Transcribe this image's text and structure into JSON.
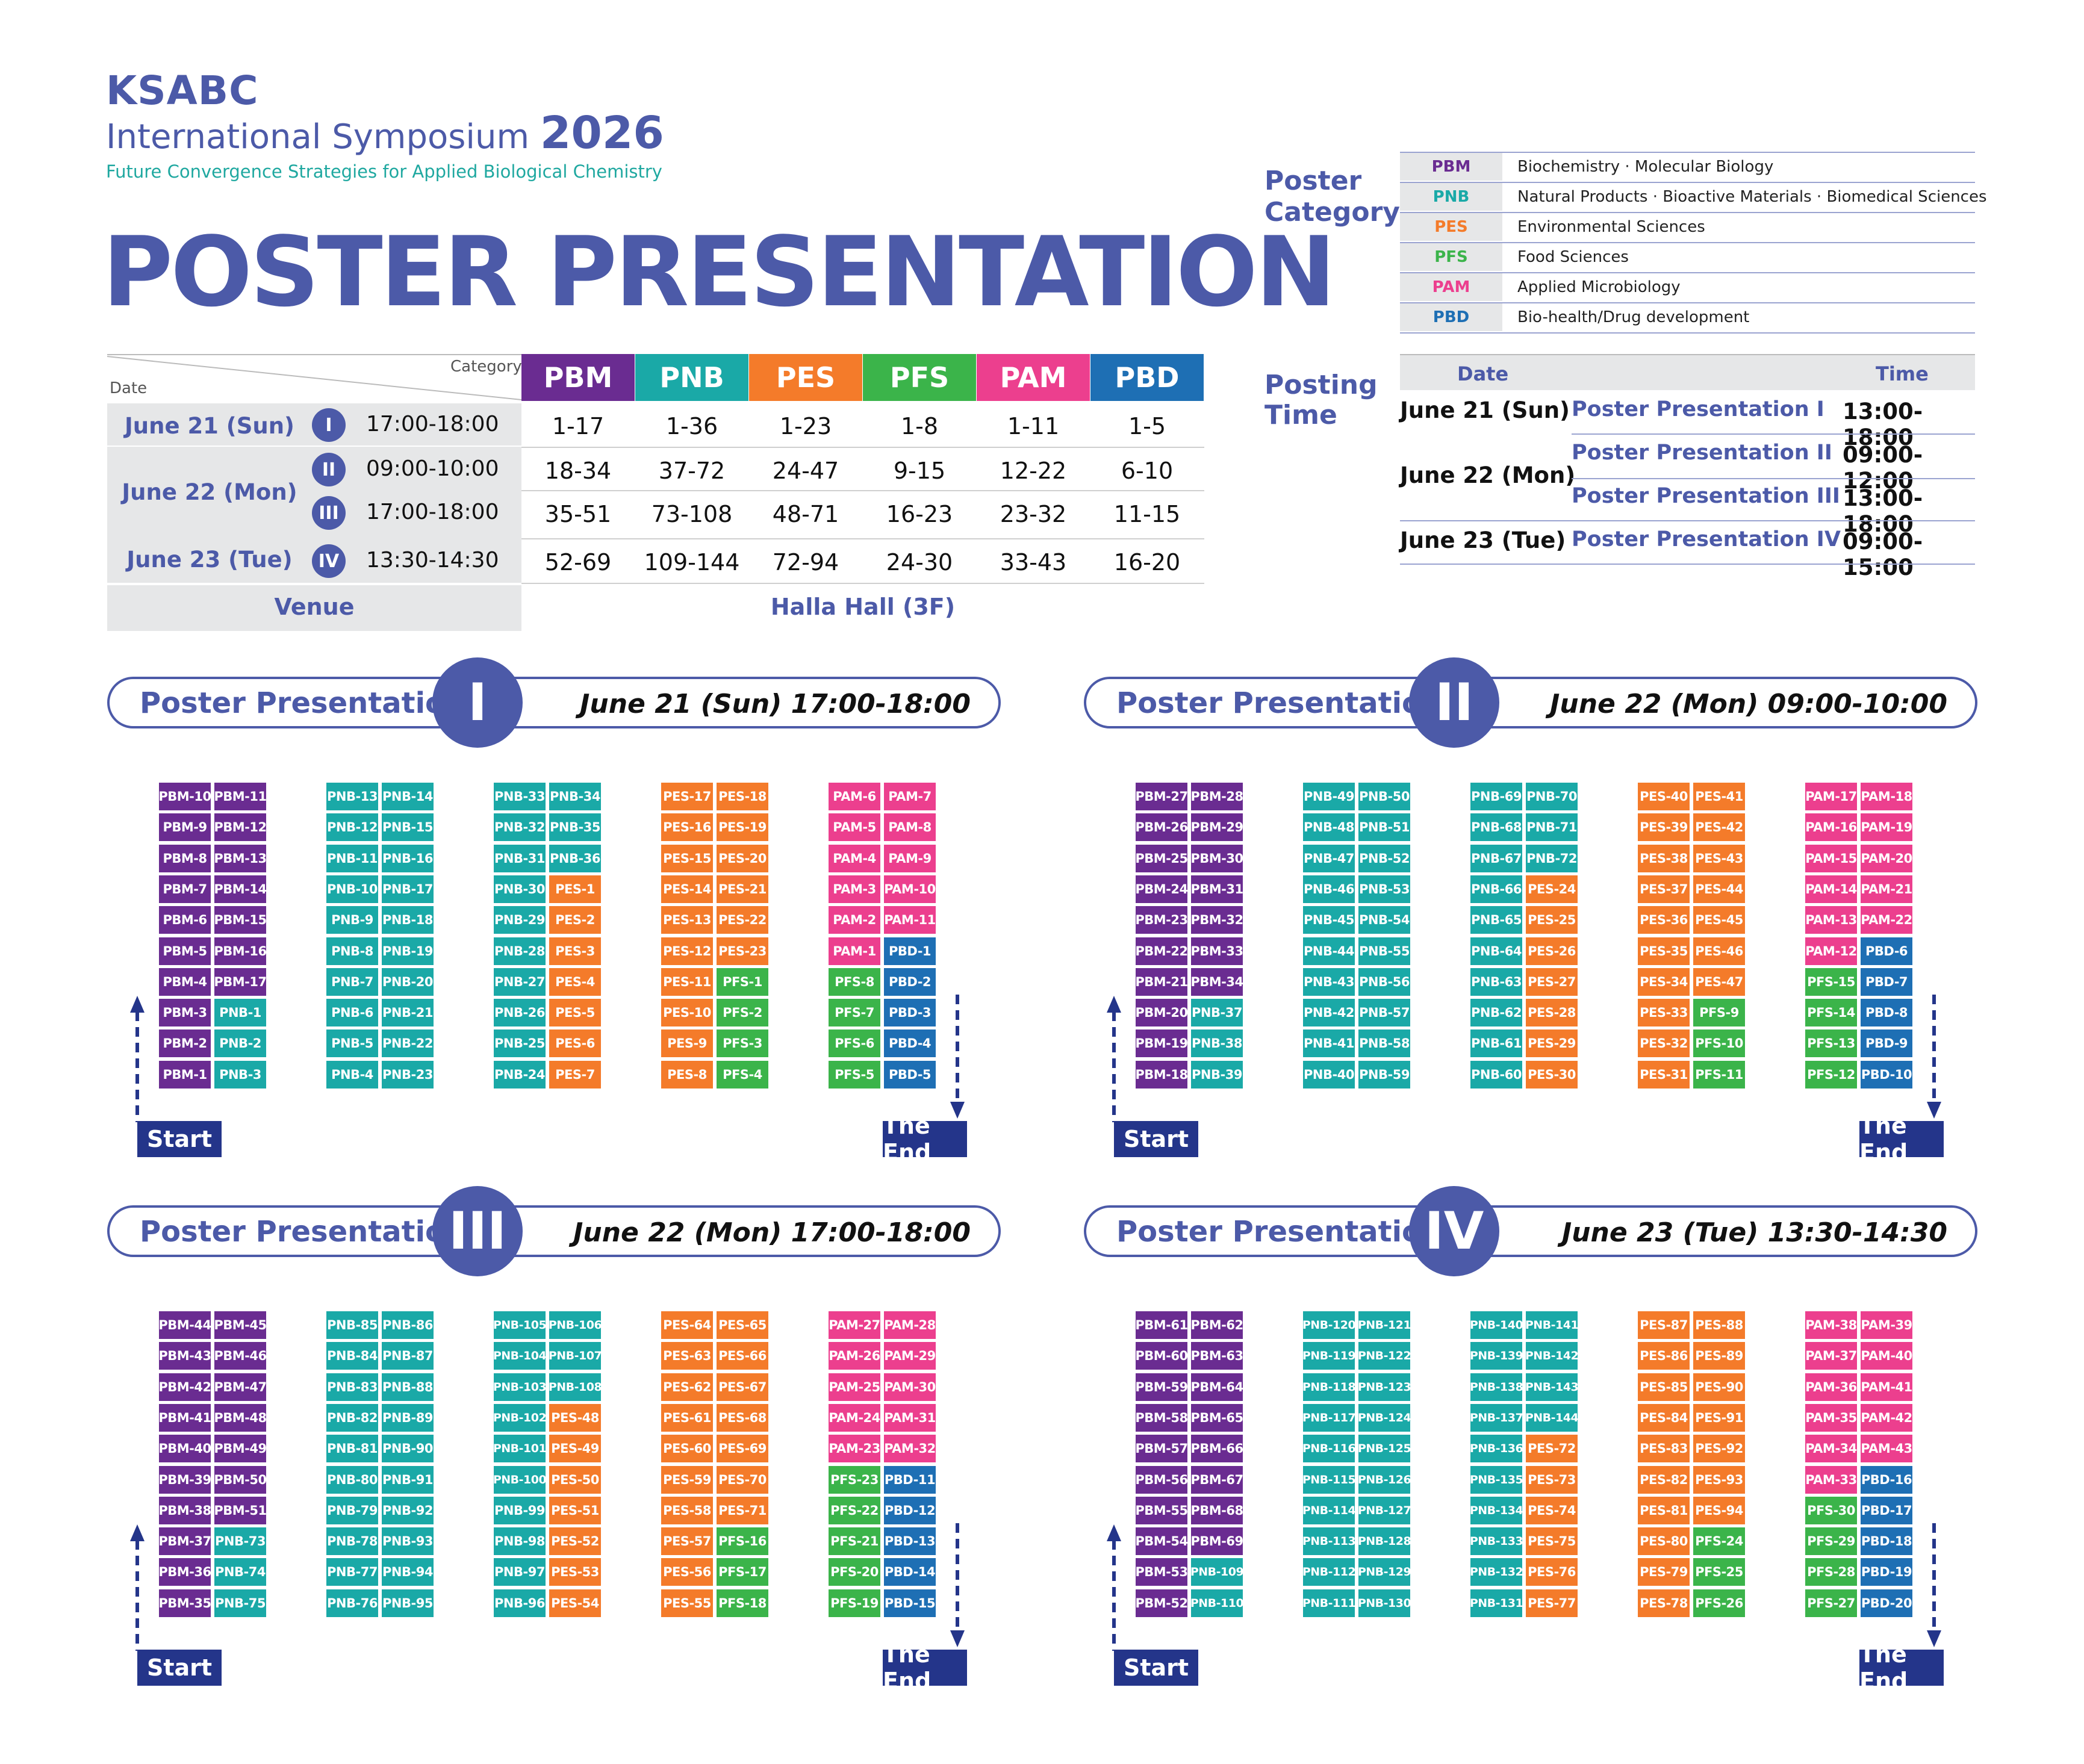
{
  "header": {
    "brand": "KSABC",
    "symposium": "International Symposium",
    "year": "2026",
    "tagline": "Future Convergence Strategies for Applied Biological Chemistry",
    "title": "POSTER PRESENTATION"
  },
  "colors": {
    "PBM": "#6a2c91",
    "PNB": "#1aa9a7",
    "PES": "#f47b2a",
    "PFS": "#3bb44a",
    "PAM": "#ec3f8e",
    "PBD": "#1e6fb4",
    "primary": "#4c5aa8",
    "button": "#24358a"
  },
  "schedule": {
    "category_label": "Category",
    "date_label": "Date",
    "categories": [
      "PBM",
      "PNB",
      "PES",
      "PFS",
      "PAM",
      "PBD"
    ],
    "rows": [
      {
        "date": "June 21 (Sun)",
        "session": "I",
        "time": "17:00-18:00",
        "values": [
          "1-17",
          "1-36",
          "1-23",
          "1-8",
          "1-11",
          "1-5"
        ]
      },
      {
        "date": "June 22 (Mon)",
        "session": "II",
        "time": "09:00-10:00",
        "values": [
          "18-34",
          "37-72",
          "24-47",
          "9-15",
          "12-22",
          "6-10"
        ]
      },
      {
        "date": "",
        "session": "III",
        "time": "17:00-18:00",
        "values": [
          "35-51",
          "73-108",
          "48-71",
          "16-23",
          "23-32",
          "11-15"
        ]
      },
      {
        "date": "June 23 (Tue)",
        "session": "IV",
        "time": "13:30-14:30",
        "values": [
          "52-69",
          "109-144",
          "72-94",
          "24-30",
          "33-43",
          "16-20"
        ]
      }
    ],
    "venue_label": "Venue",
    "venue": "Halla Hall (3F)"
  },
  "poster_category": {
    "title_line1": "Poster",
    "title_line2": "Category",
    "items": [
      {
        "code": "PBM",
        "name": "Biochemistry · Molecular Biology"
      },
      {
        "code": "PNB",
        "name": "Natural Products · Bioactive Materials · Biomedical Sciences"
      },
      {
        "code": "PES",
        "name": "Environmental Sciences"
      },
      {
        "code": "PFS",
        "name": "Food Sciences"
      },
      {
        "code": "PAM",
        "name": "Applied Microbiology"
      },
      {
        "code": "PBD",
        "name": "Bio-health/Drug development"
      }
    ]
  },
  "posting_time": {
    "title_line1": "Posting",
    "title_line2": "Time",
    "date_header": "Date",
    "time_header": "Time",
    "rows": [
      {
        "date": "June 21 (Sun)",
        "name": "Poster Presentation I",
        "time": "13:00-18:00"
      },
      {
        "date": "June 22 (Mon)",
        "name": "Poster Presentation II",
        "time": "09:00-12:00"
      },
      {
        "date": "",
        "name": "Poster Presentation III",
        "time": "13:00-18:00"
      },
      {
        "date": "June 23 (Tue)",
        "name": "Poster Presentation IV",
        "time": "09:00-15:00"
      }
    ]
  },
  "sessions": [
    {
      "label": "Poster Presentation",
      "number": "I",
      "datetime": "June 21 (Sun) 17:00-18:00",
      "start": "Start",
      "end": "The End",
      "columns": [
        [
          "PBM-10",
          "PBM-9",
          "PBM-8",
          "PBM-7",
          "PBM-6",
          "PBM-5",
          "PBM-4",
          "PBM-3",
          "PBM-2",
          "PBM-1"
        ],
        [
          "PBM-11",
          "PBM-12",
          "PBM-13",
          "PBM-14",
          "PBM-15",
          "PBM-16",
          "PBM-17",
          "PNB-1",
          "PNB-2",
          "PNB-3"
        ],
        [
          "PNB-13",
          "PNB-12",
          "PNB-11",
          "PNB-10",
          "PNB-9",
          "PNB-8",
          "PNB-7",
          "PNB-6",
          "PNB-5",
          "PNB-4"
        ],
        [
          "PNB-14",
          "PNB-15",
          "PNB-16",
          "PNB-17",
          "PNB-18",
          "PNB-19",
          "PNB-20",
          "PNB-21",
          "PNB-22",
          "PNB-23"
        ],
        [
          "PNB-33",
          "PNB-32",
          "PNB-31",
          "PNB-30",
          "PNB-29",
          "PNB-28",
          "PNB-27",
          "PNB-26",
          "PNB-25",
          "PNB-24"
        ],
        [
          "PNB-34",
          "PNB-35",
          "PNB-36",
          "PES-1",
          "PES-2",
          "PES-3",
          "PES-4",
          "PES-5",
          "PES-6",
          "PES-7"
        ],
        [
          "PES-17",
          "PES-16",
          "PES-15",
          "PES-14",
          "PES-13",
          "PES-12",
          "PES-11",
          "PES-10",
          "PES-9",
          "PES-8"
        ],
        [
          "PES-18",
          "PES-19",
          "PES-20",
          "PES-21",
          "PES-22",
          "PES-23",
          "PFS-1",
          "PFS-2",
          "PFS-3",
          "PFS-4"
        ],
        [
          "PAM-6",
          "PAM-5",
          "PAM-4",
          "PAM-3",
          "PAM-2",
          "PAM-1",
          "PFS-8",
          "PFS-7",
          "PFS-6",
          "PFS-5"
        ],
        [
          "PAM-7",
          "PAM-8",
          "PAM-9",
          "PAM-10",
          "PAM-11",
          "PBD-1",
          "PBD-2",
          "PBD-3",
          "PBD-4",
          "PBD-5"
        ]
      ]
    },
    {
      "label": "Poster Presentation",
      "number": "II",
      "datetime": "June 22 (Mon) 09:00-10:00",
      "start": "Start",
      "end": "The End",
      "columns": [
        [
          "PBM-27",
          "PBM-26",
          "PBM-25",
          "PBM-24",
          "PBM-23",
          "PBM-22",
          "PBM-21",
          "PBM-20",
          "PBM-19",
          "PBM-18"
        ],
        [
          "PBM-28",
          "PBM-29",
          "PBM-30",
          "PBM-31",
          "PBM-32",
          "PBM-33",
          "PBM-34",
          "PNB-37",
          "PNB-38",
          "PNB-39"
        ],
        [
          "PNB-49",
          "PNB-48",
          "PNB-47",
          "PNB-46",
          "PNB-45",
          "PNB-44",
          "PNB-43",
          "PNB-42",
          "PNB-41",
          "PNB-40"
        ],
        [
          "PNB-50",
          "PNB-51",
          "PNB-52",
          "PNB-53",
          "PNB-54",
          "PNB-55",
          "PNB-56",
          "PNB-57",
          "PNB-58",
          "PNB-59"
        ],
        [
          "PNB-69",
          "PNB-68",
          "PNB-67",
          "PNB-66",
          "PNB-65",
          "PNB-64",
          "PNB-63",
          "PNB-62",
          "PNB-61",
          "PNB-60"
        ],
        [
          "PNB-70",
          "PNB-71",
          "PNB-72",
          "PES-24",
          "PES-25",
          "PES-26",
          "PES-27",
          "PES-28",
          "PES-29",
          "PES-30"
        ],
        [
          "PES-40",
          "PES-39",
          "PES-38",
          "PES-37",
          "PES-36",
          "PES-35",
          "PES-34",
          "PES-33",
          "PES-32",
          "PES-31"
        ],
        [
          "PES-41",
          "PES-42",
          "PES-43",
          "PES-44",
          "PES-45",
          "PES-46",
          "PES-47",
          "PFS-9",
          "PFS-10",
          "PFS-11"
        ],
        [
          "PAM-17",
          "PAM-16",
          "PAM-15",
          "PAM-14",
          "PAM-13",
          "PAM-12",
          "PFS-15",
          "PFS-14",
          "PFS-13",
          "PFS-12"
        ],
        [
          "PAM-18",
          "PAM-19",
          "PAM-20",
          "PAM-21",
          "PAM-22",
          "PBD-6",
          "PBD-7",
          "PBD-8",
          "PBD-9",
          "PBD-10"
        ]
      ]
    },
    {
      "label": "Poster Presentation",
      "number": "III",
      "datetime": "June 22 (Mon) 17:00-18:00",
      "start": "Start",
      "end": "The End",
      "columns": [
        [
          "PBM-44",
          "PBM-43",
          "PBM-42",
          "PBM-41",
          "PBM-40",
          "PBM-39",
          "PBM-38",
          "PBM-37",
          "PBM-36",
          "PBM-35"
        ],
        [
          "PBM-45",
          "PBM-46",
          "PBM-47",
          "PBM-48",
          "PBM-49",
          "PBM-50",
          "PBM-51",
          "PNB-73",
          "PNB-74",
          "PNB-75"
        ],
        [
          "PNB-85",
          "PNB-84",
          "PNB-83",
          "PNB-82",
          "PNB-81",
          "PNB-80",
          "PNB-79",
          "PNB-78",
          "PNB-77",
          "PNB-76"
        ],
        [
          "PNB-86",
          "PNB-87",
          "PNB-88",
          "PNB-89",
          "PNB-90",
          "PNB-91",
          "PNB-92",
          "PNB-93",
          "PNB-94",
          "PNB-95"
        ],
        [
          "PNB-105",
          "PNB-104",
          "PNB-103",
          "PNB-102",
          "PNB-101",
          "PNB-100",
          "PNB-99",
          "PNB-98",
          "PNB-97",
          "PNB-96"
        ],
        [
          "PNB-106",
          "PNB-107",
          "PNB-108",
          "PES-48",
          "PES-49",
          "PES-50",
          "PES-51",
          "PES-52",
          "PES-53",
          "PES-54"
        ],
        [
          "PES-64",
          "PES-63",
          "PES-62",
          "PES-61",
          "PES-60",
          "PES-59",
          "PES-58",
          "PES-57",
          "PES-56",
          "PES-55"
        ],
        [
          "PES-65",
          "PES-66",
          "PES-67",
          "PES-68",
          "PES-69",
          "PES-70",
          "PES-71",
          "PFS-16",
          "PFS-17",
          "PFS-18"
        ],
        [
          "PAM-27",
          "PAM-26",
          "PAM-25",
          "PAM-24",
          "PAM-23",
          "PFS-23",
          "PFS-22",
          "PFS-21",
          "PFS-20",
          "PFS-19"
        ],
        [
          "PAM-28",
          "PAM-29",
          "PAM-30",
          "PAM-31",
          "PAM-32",
          "PBD-11",
          "PBD-12",
          "PBD-13",
          "PBD-14",
          "PBD-15"
        ]
      ]
    },
    {
      "label": "Poster Presentation",
      "number": "IV",
      "datetime": "June 23 (Tue) 13:30-14:30",
      "start": "Start",
      "end": "The End",
      "columns": [
        [
          "PBM-61",
          "PBM-60",
          "PBM-59",
          "PBM-58",
          "PBM-57",
          "PBM-56",
          "PBM-55",
          "PBM-54",
          "PBM-53",
          "PBM-52"
        ],
        [
          "PBM-62",
          "PBM-63",
          "PBM-64",
          "PBM-65",
          "PBM-66",
          "PBM-67",
          "PBM-68",
          "PBM-69",
          "PNB-109",
          "PNB-110"
        ],
        [
          "PNB-120",
          "PNB-119",
          "PNB-118",
          "PNB-117",
          "PNB-116",
          "PNB-115",
          "PNB-114",
          "PNB-113",
          "PNB-112",
          "PNB-111"
        ],
        [
          "PNB-121",
          "PNB-122",
          "PNB-123",
          "PNB-124",
          "PNB-125",
          "PNB-126",
          "PNB-127",
          "PNB-128",
          "PNB-129",
          "PNB-130"
        ],
        [
          "PNB-140",
          "PNB-139",
          "PNB-138",
          "PNB-137",
          "PNB-136",
          "PNB-135",
          "PNB-134",
          "PNB-133",
          "PNB-132",
          "PNB-131"
        ],
        [
          "PNB-141",
          "PNB-142",
          "PNB-143",
          "PNB-144",
          "PES-72",
          "PES-73",
          "PES-74",
          "PES-75",
          "PES-76",
          "PES-77"
        ],
        [
          "PES-87",
          "PES-86",
          "PES-85",
          "PES-84",
          "PES-83",
          "PES-82",
          "PES-81",
          "PES-80",
          "PES-79",
          "PES-78"
        ],
        [
          "PES-88",
          "PES-89",
          "PES-90",
          "PES-91",
          "PES-92",
          "PES-93",
          "PES-94",
          "PFS-24",
          "PFS-25",
          "PFS-26"
        ],
        [
          "PAM-38",
          "PAM-37",
          "PAM-36",
          "PAM-35",
          "PAM-34",
          "PAM-33",
          "PFS-30",
          "PFS-29",
          "PFS-28",
          "PFS-27"
        ],
        [
          "PAM-39",
          "PAM-40",
          "PAM-41",
          "PAM-42",
          "PAM-43",
          "PBD-16",
          "PBD-17",
          "PBD-18",
          "PBD-19",
          "PBD-20"
        ]
      ]
    }
  ]
}
